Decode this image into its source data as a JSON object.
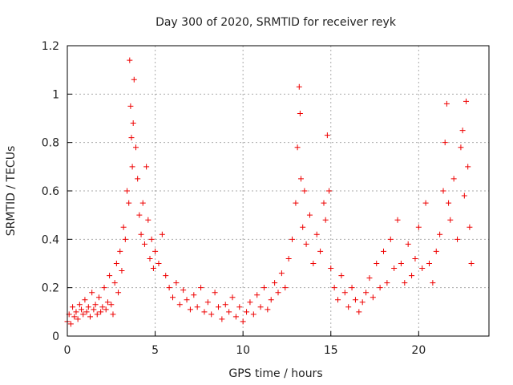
{
  "chart_data": {
    "type": "scatter",
    "title": "Day 300 of 2020, SRMTID for receiver reyk",
    "xlabel": "GPS time / hours",
    "ylabel": "SRMTID / TECUs",
    "xlim": [
      0,
      24
    ],
    "ylim": [
      0,
      1.2
    ],
    "x_ticks": [
      0,
      5,
      10,
      15,
      20
    ],
    "y_ticks": [
      0,
      0.2,
      0.4,
      0.6,
      0.8,
      1,
      1.2
    ],
    "x_tick_labels": [
      "0",
      "5",
      "10",
      "15",
      "20"
    ],
    "y_tick_labels": [
      "0",
      "0.2",
      "0.4",
      "0.6",
      "0.8",
      "1",
      "1.2"
    ],
    "grid": true,
    "marker": "plus",
    "color": "#ee0000",
    "grid_color": "#aaaaaa",
    "series": [
      {
        "name": "SRMTID",
        "points": [
          [
            0.0,
            0.06
          ],
          [
            0.1,
            0.09
          ],
          [
            0.2,
            0.05
          ],
          [
            0.3,
            0.12
          ],
          [
            0.4,
            0.08
          ],
          [
            0.5,
            0.1
          ],
          [
            0.6,
            0.07
          ],
          [
            0.7,
            0.13
          ],
          [
            0.8,
            0.11
          ],
          [
            0.9,
            0.09
          ],
          [
            1.0,
            0.15
          ],
          [
            1.1,
            0.1
          ],
          [
            1.2,
            0.12
          ],
          [
            1.3,
            0.08
          ],
          [
            1.4,
            0.18
          ],
          [
            1.5,
            0.11
          ],
          [
            1.6,
            0.13
          ],
          [
            1.7,
            0.09
          ],
          [
            1.8,
            0.16
          ],
          [
            1.9,
            0.1
          ],
          [
            2.0,
            0.12
          ],
          [
            2.1,
            0.2
          ],
          [
            2.2,
            0.11
          ],
          [
            2.3,
            0.14
          ],
          [
            2.4,
            0.25
          ],
          [
            2.5,
            0.13
          ],
          [
            2.6,
            0.09
          ],
          [
            2.7,
            0.22
          ],
          [
            2.8,
            0.3
          ],
          [
            2.9,
            0.18
          ],
          [
            3.0,
            0.35
          ],
          [
            3.1,
            0.27
          ],
          [
            3.2,
            0.45
          ],
          [
            3.3,
            0.4
          ],
          [
            3.4,
            0.6
          ],
          [
            3.5,
            0.55
          ],
          [
            3.55,
            1.14
          ],
          [
            3.6,
            0.95
          ],
          [
            3.65,
            0.82
          ],
          [
            3.7,
            0.7
          ],
          [
            3.75,
            0.88
          ],
          [
            3.8,
            1.06
          ],
          [
            3.9,
            0.78
          ],
          [
            4.0,
            0.65
          ],
          [
            4.1,
            0.5
          ],
          [
            4.2,
            0.42
          ],
          [
            4.3,
            0.55
          ],
          [
            4.4,
            0.38
          ],
          [
            4.5,
            0.7
          ],
          [
            4.6,
            0.48
          ],
          [
            4.7,
            0.32
          ],
          [
            4.8,
            0.4
          ],
          [
            4.9,
            0.28
          ],
          [
            5.0,
            0.35
          ],
          [
            5.2,
            0.3
          ],
          [
            5.4,
            0.42
          ],
          [
            5.6,
            0.25
          ],
          [
            5.8,
            0.2
          ],
          [
            6.0,
            0.16
          ],
          [
            6.2,
            0.22
          ],
          [
            6.4,
            0.13
          ],
          [
            6.6,
            0.19
          ],
          [
            6.8,
            0.15
          ],
          [
            7.0,
            0.11
          ],
          [
            7.2,
            0.17
          ],
          [
            7.4,
            0.12
          ],
          [
            7.6,
            0.2
          ],
          [
            7.8,
            0.1
          ],
          [
            8.0,
            0.14
          ],
          [
            8.2,
            0.09
          ],
          [
            8.4,
            0.18
          ],
          [
            8.6,
            0.12
          ],
          [
            8.8,
            0.07
          ],
          [
            9.0,
            0.13
          ],
          [
            9.2,
            0.1
          ],
          [
            9.4,
            0.16
          ],
          [
            9.6,
            0.08
          ],
          [
            9.8,
            0.12
          ],
          [
            10.0,
            0.06
          ],
          [
            10.2,
            0.1
          ],
          [
            10.4,
            0.14
          ],
          [
            10.6,
            0.09
          ],
          [
            10.8,
            0.17
          ],
          [
            11.0,
            0.12
          ],
          [
            11.2,
            0.2
          ],
          [
            11.4,
            0.11
          ],
          [
            11.6,
            0.15
          ],
          [
            11.8,
            0.22
          ],
          [
            12.0,
            0.18
          ],
          [
            12.2,
            0.26
          ],
          [
            12.4,
            0.2
          ],
          [
            12.6,
            0.32
          ],
          [
            12.8,
            0.4
          ],
          [
            13.0,
            0.55
          ],
          [
            13.1,
            0.78
          ],
          [
            13.2,
            1.03
          ],
          [
            13.25,
            0.92
          ],
          [
            13.3,
            0.65
          ],
          [
            13.4,
            0.45
          ],
          [
            13.5,
            0.6
          ],
          [
            13.6,
            0.38
          ],
          [
            13.8,
            0.5
          ],
          [
            14.0,
            0.3
          ],
          [
            14.2,
            0.42
          ],
          [
            14.4,
            0.35
          ],
          [
            14.6,
            0.55
          ],
          [
            14.7,
            0.48
          ],
          [
            14.8,
            0.83
          ],
          [
            14.9,
            0.6
          ],
          [
            15.0,
            0.28
          ],
          [
            15.2,
            0.2
          ],
          [
            15.4,
            0.15
          ],
          [
            15.6,
            0.25
          ],
          [
            15.8,
            0.18
          ],
          [
            16.0,
            0.12
          ],
          [
            16.2,
            0.2
          ],
          [
            16.4,
            0.15
          ],
          [
            16.6,
            0.1
          ],
          [
            16.8,
            0.14
          ],
          [
            17.0,
            0.18
          ],
          [
            17.2,
            0.24
          ],
          [
            17.4,
            0.16
          ],
          [
            17.6,
            0.3
          ],
          [
            17.8,
            0.2
          ],
          [
            18.0,
            0.35
          ],
          [
            18.2,
            0.22
          ],
          [
            18.4,
            0.4
          ],
          [
            18.6,
            0.28
          ],
          [
            18.8,
            0.48
          ],
          [
            19.0,
            0.3
          ],
          [
            19.2,
            0.22
          ],
          [
            19.4,
            0.38
          ],
          [
            19.6,
            0.25
          ],
          [
            19.8,
            0.32
          ],
          [
            20.0,
            0.45
          ],
          [
            20.2,
            0.28
          ],
          [
            20.4,
            0.55
          ],
          [
            20.6,
            0.3
          ],
          [
            20.8,
            0.22
          ],
          [
            21.0,
            0.35
          ],
          [
            21.2,
            0.42
          ],
          [
            21.4,
            0.6
          ],
          [
            21.5,
            0.8
          ],
          [
            21.6,
            0.96
          ],
          [
            21.7,
            0.55
          ],
          [
            21.8,
            0.48
          ],
          [
            22.0,
            0.65
          ],
          [
            22.2,
            0.4
          ],
          [
            22.4,
            0.78
          ],
          [
            22.5,
            0.85
          ],
          [
            22.6,
            0.58
          ],
          [
            22.7,
            0.97
          ],
          [
            22.8,
            0.7
          ],
          [
            22.9,
            0.45
          ],
          [
            23.0,
            0.3
          ]
        ]
      }
    ]
  }
}
